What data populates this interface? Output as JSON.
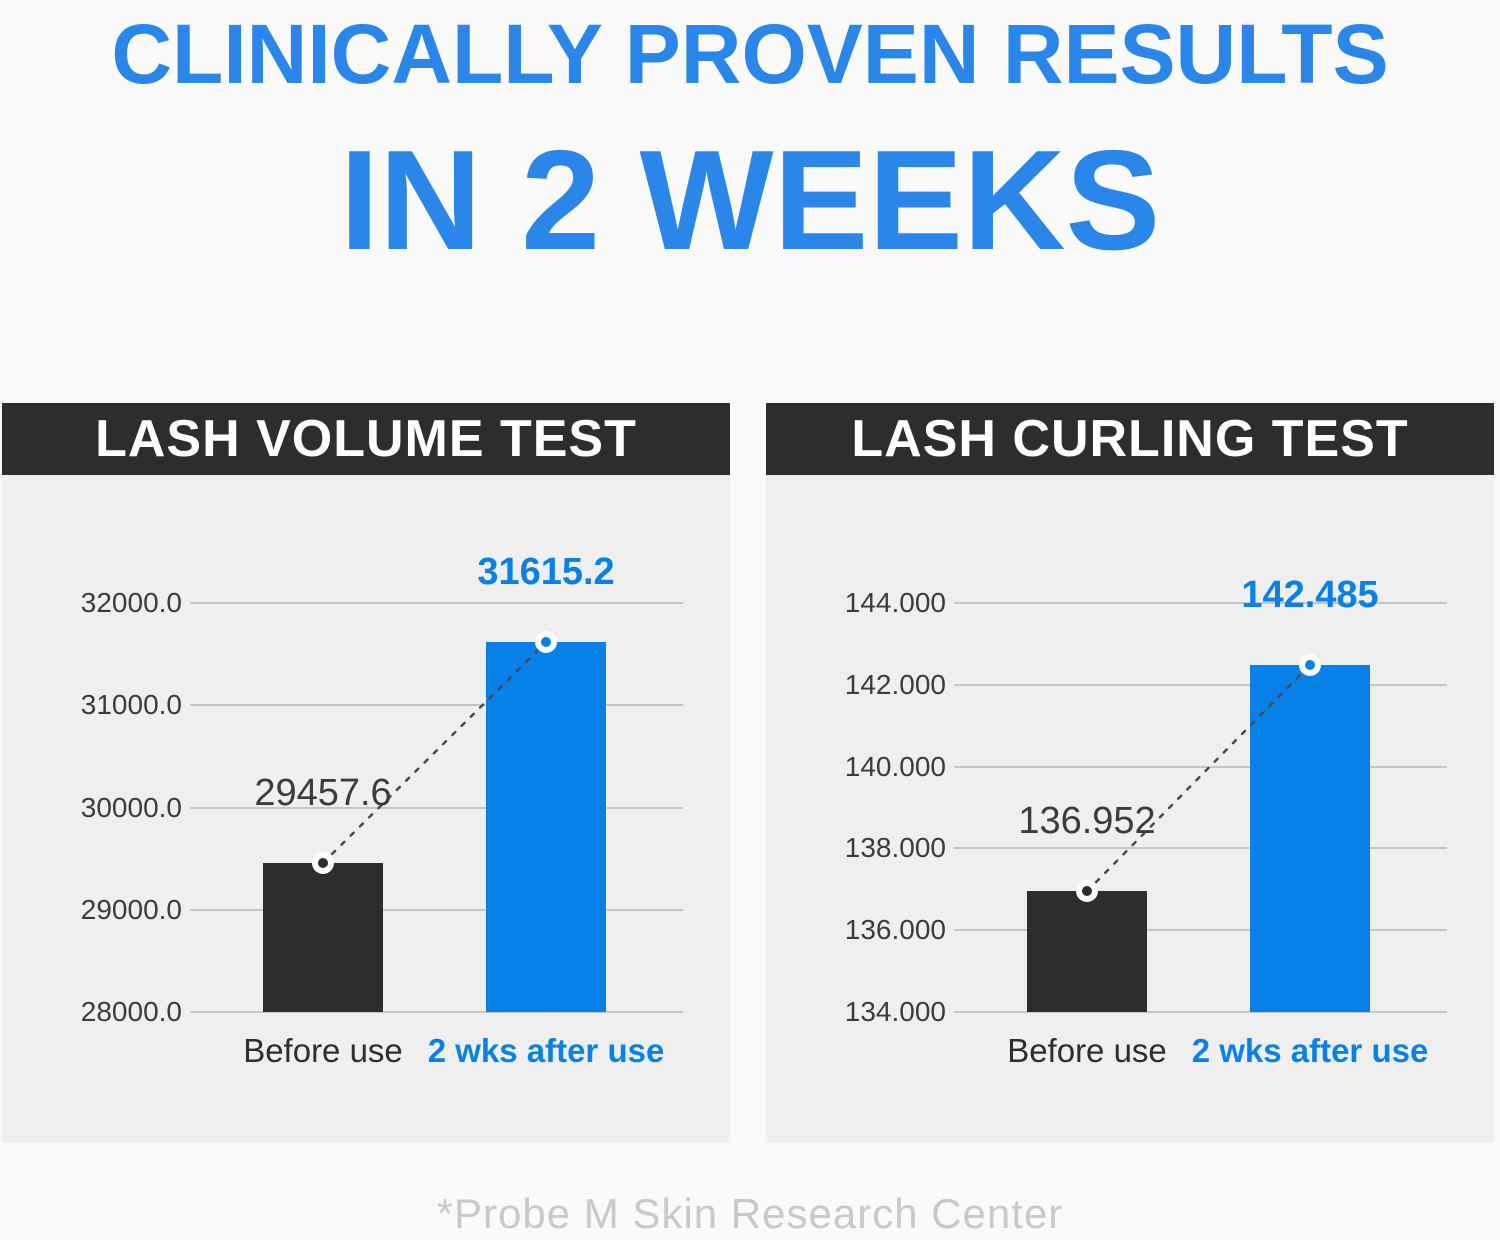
{
  "title": {
    "line1": "CLINICALLY PROVEN RESULTS",
    "line2": "IN 2 WEEKS"
  },
  "footer": {
    "note": "*Probe M Skin Research Center"
  },
  "colors": {
    "background": "#fafafa",
    "panel": "#efefef",
    "panel_header": "#2d2d2f",
    "title_blue": "#2a86e8",
    "accent_blue": "#0781e8",
    "bar_dark": "#2d2d2f",
    "gridline": "#c6c6c6",
    "tick_text": "#3c3c3c",
    "category_text": "#2e2e2e",
    "connector": "#4a4a4a",
    "dot_ring": "#ffffff",
    "footer_text": "#c9c9c9"
  },
  "chart_data": [
    {
      "type": "bar",
      "title": "LASH VOLUME TEST",
      "categories": [
        "Before use",
        "2 wks after use"
      ],
      "values": [
        29457.6,
        31615.2
      ],
      "value_labels": [
        "29457.6",
        "31615.2"
      ],
      "bar_styles": [
        "dark",
        "blue"
      ],
      "ylim": [
        28000,
        32000
      ],
      "yticks": [
        {
          "value": 32000,
          "label": "32000.0"
        },
        {
          "value": 31000,
          "label": "31000.0"
        },
        {
          "value": 30000,
          "label": "30000.0"
        },
        {
          "value": 29000,
          "label": "29000.0"
        },
        {
          "value": 28000,
          "label": "28000.0"
        }
      ],
      "grid": true,
      "legend": "none",
      "annotation": "dashed connector line between bar-top markers"
    },
    {
      "type": "bar",
      "title": "LASH CURLING TEST",
      "categories": [
        "Before use",
        "2 wks after use"
      ],
      "values": [
        136.952,
        142.485
      ],
      "value_labels": [
        "136.952",
        "142.485"
      ],
      "bar_styles": [
        "dark",
        "blue"
      ],
      "ylim": [
        134,
        144
      ],
      "yticks": [
        {
          "value": 144,
          "label": "144.000"
        },
        {
          "value": 142,
          "label": "142.000"
        },
        {
          "value": 140,
          "label": "140.000"
        },
        {
          "value": 138,
          "label": "138.000"
        },
        {
          "value": 136,
          "label": "136.000"
        },
        {
          "value": 134,
          "label": "134.000"
        }
      ],
      "grid": true,
      "legend": "none",
      "annotation": "dashed connector line between bar-top markers"
    }
  ]
}
